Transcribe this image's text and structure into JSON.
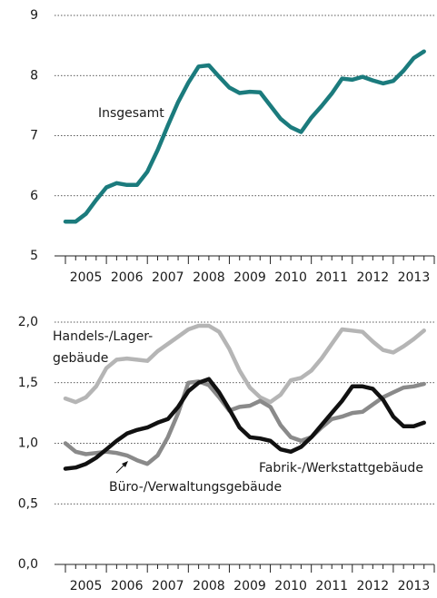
{
  "chart_data": [
    {
      "type": "line",
      "x": [
        2005,
        2005.25,
        2005.5,
        2005.75,
        2006,
        2006.25,
        2006.5,
        2006.75,
        2007,
        2007.25,
        2007.5,
        2007.75,
        2008,
        2008.25,
        2008.5,
        2008.75,
        2009,
        2009.25,
        2009.5,
        2009.75,
        2010,
        2010.25,
        2010.5,
        2010.75,
        2011,
        2011.25,
        2011.5,
        2011.75,
        2012,
        2012.25,
        2012.5,
        2012.75,
        2013,
        2013.25,
        2013.5,
        2013.75
      ],
      "xlim": [
        2005,
        2014
      ],
      "xticks": [
        2005,
        2006,
        2007,
        2008,
        2009,
        2010,
        2011,
        2012,
        2013
      ],
      "ylim": [
        5,
        9
      ],
      "yticks": [
        5,
        6,
        7,
        8,
        9
      ],
      "grid": true,
      "series": [
        {
          "name": "Insgesamt",
          "color": "#1b7b7d",
          "values": [
            5.57,
            5.57,
            5.7,
            5.93,
            6.14,
            6.21,
            6.18,
            6.18,
            6.4,
            6.76,
            7.17,
            7.56,
            7.88,
            8.15,
            8.17,
            7.98,
            7.8,
            7.71,
            7.73,
            7.72,
            7.5,
            7.28,
            7.14,
            7.06,
            7.3,
            7.49,
            7.7,
            7.95,
            7.93,
            7.98,
            7.92,
            7.87,
            7.91,
            8.08,
            8.29,
            8.4
          ]
        }
      ]
    },
    {
      "type": "line",
      "x": [
        2005,
        2005.25,
        2005.5,
        2005.75,
        2006,
        2006.25,
        2006.5,
        2006.75,
        2007,
        2007.25,
        2007.5,
        2007.75,
        2008,
        2008.25,
        2008.5,
        2008.75,
        2009,
        2009.25,
        2009.5,
        2009.75,
        2010,
        2010.25,
        2010.5,
        2010.75,
        2011,
        2011.25,
        2011.5,
        2011.75,
        2012,
        2012.25,
        2012.5,
        2012.75,
        2013,
        2013.25,
        2013.5,
        2013.75
      ],
      "xlim": [
        2005,
        2014
      ],
      "xticks": [
        2005,
        2006,
        2007,
        2008,
        2009,
        2010,
        2011,
        2012,
        2013
      ],
      "ylim": [
        0,
        2
      ],
      "yticks": [
        {
          "value": 0,
          "label": "0,0"
        },
        {
          "value": 0.5,
          "label": "0,5"
        },
        {
          "value": 1,
          "label": "1,0"
        },
        {
          "value": 1.5,
          "label": "1,5"
        },
        {
          "value": 2,
          "label": "2,0"
        }
      ],
      "grid": true,
      "series": [
        {
          "name": [
            "Handels-/Lager-",
            "gebäude"
          ],
          "color": "#b5b5b5",
          "values": [
            1.37,
            1.34,
            1.38,
            1.47,
            1.62,
            1.69,
            1.7,
            1.69,
            1.68,
            1.76,
            1.82,
            1.88,
            1.94,
            1.97,
            1.97,
            1.92,
            1.78,
            1.6,
            1.46,
            1.38,
            1.34,
            1.4,
            1.52,
            1.54,
            1.6,
            1.7,
            1.82,
            1.94,
            1.93,
            1.92,
            1.84,
            1.77,
            1.75,
            1.8,
            1.86,
            1.93
          ]
        },
        {
          "name": "Büro-/Verwaltungsgebäude",
          "color": "#8a8a8a",
          "values": [
            1.0,
            0.93,
            0.91,
            0.92,
            0.93,
            0.92,
            0.9,
            0.86,
            0.83,
            0.9,
            1.05,
            1.25,
            1.5,
            1.51,
            1.48,
            1.38,
            1.27,
            1.3,
            1.31,
            1.35,
            1.3,
            1.15,
            1.05,
            1.02,
            1.05,
            1.13,
            1.2,
            1.22,
            1.25,
            1.26,
            1.32,
            1.38,
            1.42,
            1.46,
            1.47,
            1.49
          ]
        },
        {
          "name": "Fabrik-/Werkstattgebäude",
          "color": "#111111",
          "values": [
            0.79,
            0.8,
            0.83,
            0.88,
            0.95,
            1.02,
            1.08,
            1.11,
            1.13,
            1.17,
            1.2,
            1.3,
            1.43,
            1.5,
            1.53,
            1.42,
            1.28,
            1.13,
            1.05,
            1.04,
            1.02,
            0.95,
            0.93,
            0.97,
            1.05,
            1.15,
            1.25,
            1.35,
            1.47,
            1.47,
            1.45,
            1.36,
            1.22,
            1.14,
            1.14,
            1.17
          ]
        }
      ]
    }
  ]
}
